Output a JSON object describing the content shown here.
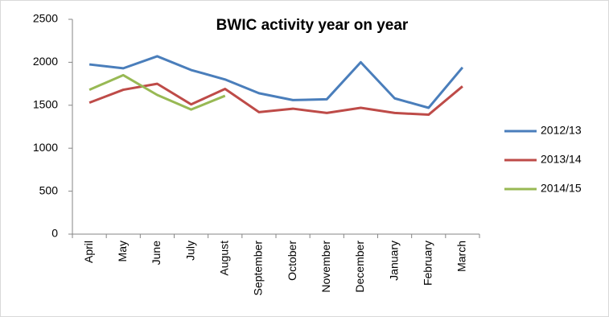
{
  "chart_data": {
    "type": "line",
    "title": "BWIC activity year on year",
    "categories": [
      "April",
      "May",
      "June",
      "July",
      "August",
      "September",
      "October",
      "November",
      "December",
      "January",
      "February",
      "March"
    ],
    "series": [
      {
        "name": "2012/13",
        "color": "#4a7ebb",
        "values": [
          1975,
          1930,
          2070,
          1910,
          1800,
          1640,
          1560,
          1570,
          2000,
          1580,
          1470,
          1940
        ]
      },
      {
        "name": "2013/14",
        "color": "#be4b48",
        "values": [
          1530,
          1680,
          1750,
          1510,
          1690,
          1420,
          1460,
          1410,
          1470,
          1410,
          1390,
          1720
        ]
      },
      {
        "name": "2014/15",
        "color": "#98b954",
        "values": [
          1680,
          1850,
          1620,
          1450,
          1610,
          null,
          null,
          null,
          null,
          null,
          null,
          null
        ]
      }
    ],
    "ylim": [
      0,
      2500
    ],
    "yticks": [
      0,
      500,
      1000,
      1500,
      2000,
      2500
    ],
    "grid": false,
    "legend": "right"
  }
}
